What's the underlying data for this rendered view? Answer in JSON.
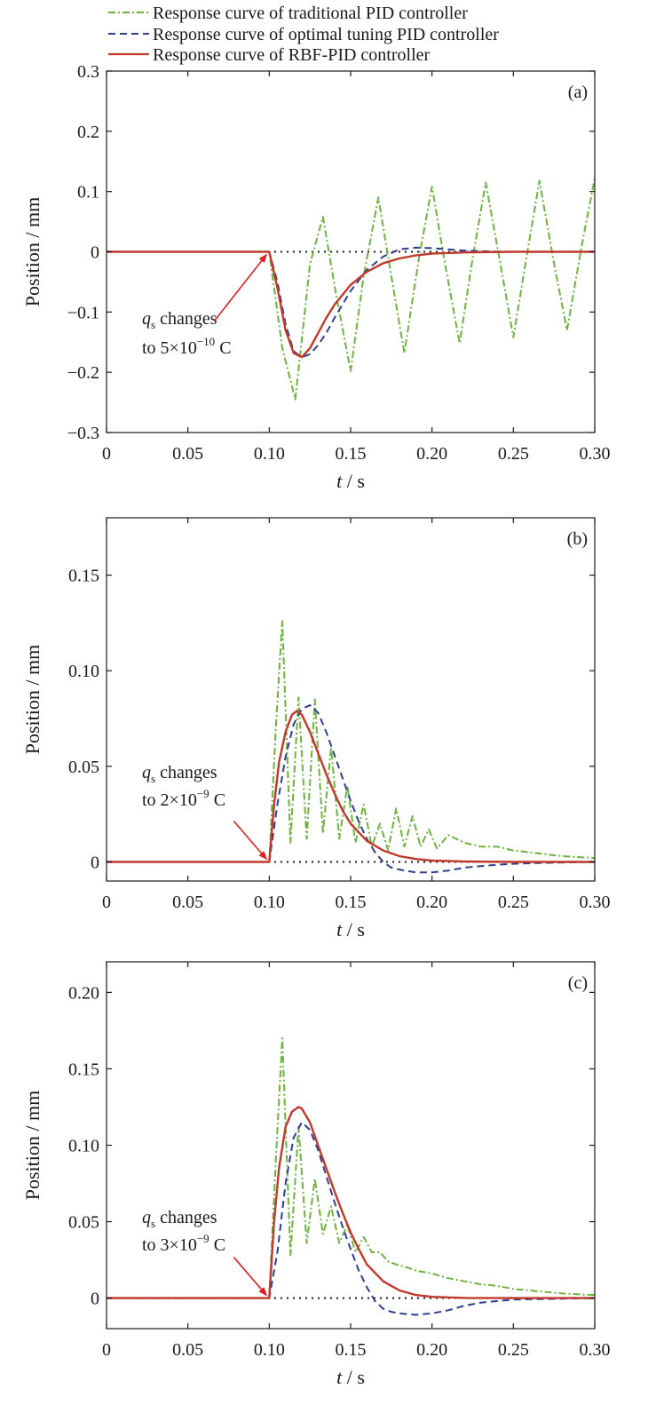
{
  "legend": {
    "position": "top",
    "entries": [
      {
        "label": "Response curve of traditional PID controller",
        "color": "#6cb33f",
        "dash": "dash-dot"
      },
      {
        "label": "Response curve of optimal tuning PID controller",
        "color": "#2e3f8f",
        "dash": "dashed"
      },
      {
        "label": "Response curve of RBF-PID controller",
        "color": "#c0392b",
        "dash": "solid"
      }
    ]
  },
  "colors": {
    "traditional": "#6cb33f",
    "optimal": "#2e3f8f",
    "rbf": "#c0392b",
    "arrow": "#e02020",
    "axis": "#1a1a1a"
  },
  "chart_data": [
    {
      "type": "line",
      "panel_label": "(a)",
      "xlabel": "t / s",
      "ylabel": "Position / mm",
      "xlim": [
        0,
        0.3
      ],
      "ylim": [
        -0.3,
        0.3
      ],
      "xticks": [
        0,
        0.05,
        0.1,
        0.15,
        0.2,
        0.25,
        0.3
      ],
      "xtick_labels": [
        "0",
        "0.05",
        "0.10",
        "0.15",
        "0.20",
        "0.25",
        "0.30"
      ],
      "yticks": [
        -0.3,
        -0.2,
        -0.1,
        0,
        0.1,
        0.2,
        0.3
      ],
      "ytick_labels": [
        "−0.3",
        "−0.2",
        "−0.1",
        "0",
        "0.1",
        "0.2",
        "0.3"
      ],
      "reference_line": 0,
      "annotation": {
        "line1": "changes",
        "q": "q",
        "sub": "s",
        "prefix": "to 5×10",
        "exp": "−10",
        "suffix": " C",
        "target": [
          0.1,
          0
        ]
      },
      "series": [
        {
          "name": "Response curve of traditional PID controller",
          "key": "traditional",
          "x": [
            0,
            0.1,
            0.108,
            0.116,
            0.125,
            0.133,
            0.141,
            0.15,
            0.158,
            0.167,
            0.175,
            0.183,
            0.192,
            0.2,
            0.208,
            0.217,
            0.225,
            0.233,
            0.242,
            0.25,
            0.258,
            0.266,
            0.275,
            0.283,
            0.292,
            0.3
          ],
          "y": [
            0,
            0,
            -0.16,
            -0.245,
            -0.02,
            0.058,
            -0.07,
            -0.198,
            -0.04,
            0.09,
            -0.04,
            -0.168,
            -0.01,
            0.108,
            -0.02,
            -0.152,
            -0.01,
            0.115,
            -0.02,
            -0.142,
            -0.01,
            0.118,
            -0.02,
            -0.13,
            0.01,
            0.122
          ]
        },
        {
          "name": "Response curve of optimal tuning PID controller",
          "key": "optimal",
          "x": [
            0,
            0.1,
            0.105,
            0.11,
            0.115,
            0.12,
            0.125,
            0.13,
            0.135,
            0.14,
            0.15,
            0.16,
            0.17,
            0.18,
            0.19,
            0.2,
            0.21,
            0.22,
            0.23,
            0.25,
            0.3
          ],
          "y": [
            0,
            0,
            -0.05,
            -0.12,
            -0.165,
            -0.175,
            -0.17,
            -0.155,
            -0.135,
            -0.11,
            -0.065,
            -0.03,
            -0.008,
            0.004,
            0.007,
            0.006,
            0.004,
            0.002,
            0.001,
            0,
            0
          ]
        },
        {
          "name": "Response curve of RBF-PID controller",
          "key": "rbf",
          "x": [
            0,
            0.1,
            0.105,
            0.11,
            0.115,
            0.12,
            0.125,
            0.13,
            0.135,
            0.14,
            0.15,
            0.16,
            0.17,
            0.18,
            0.19,
            0.2,
            0.22,
            0.25,
            0.3
          ],
          "y": [
            0,
            0,
            -0.06,
            -0.13,
            -0.168,
            -0.175,
            -0.16,
            -0.135,
            -0.11,
            -0.088,
            -0.055,
            -0.033,
            -0.019,
            -0.011,
            -0.006,
            -0.003,
            -0.001,
            0,
            0
          ]
        }
      ]
    },
    {
      "type": "line",
      "panel_label": "(b)",
      "xlabel": "t / s",
      "ylabel": "Position / mm",
      "xlim": [
        0,
        0.3
      ],
      "ylim": [
        -0.01,
        0.18
      ],
      "xticks": [
        0,
        0.05,
        0.1,
        0.15,
        0.2,
        0.25,
        0.3
      ],
      "xtick_labels": [
        "0",
        "0.05",
        "0.10",
        "0.15",
        "0.20",
        "0.25",
        "0.30"
      ],
      "yticks": [
        0,
        0.05,
        0.1,
        0.15
      ],
      "ytick_labels": [
        "0",
        "0.05",
        "0.10",
        "0.15"
      ],
      "reference_line": 0,
      "annotation": {
        "line1": "changes",
        "q": "q",
        "sub": "s",
        "prefix": "to 2×10",
        "exp": "−9",
        "suffix": " C",
        "target": [
          0.1,
          0
        ]
      },
      "series": [
        {
          "name": "Response curve of traditional PID controller",
          "key": "traditional",
          "x": [
            0,
            0.1,
            0.104,
            0.108,
            0.113,
            0.118,
            0.123,
            0.128,
            0.133,
            0.138,
            0.143,
            0.148,
            0.153,
            0.158,
            0.163,
            0.168,
            0.173,
            0.178,
            0.183,
            0.188,
            0.193,
            0.198,
            0.203,
            0.21,
            0.22,
            0.23,
            0.24,
            0.25,
            0.26,
            0.27,
            0.28,
            0.3
          ],
          "y": [
            0,
            0,
            0.07,
            0.126,
            0.01,
            0.086,
            0.012,
            0.085,
            0.015,
            0.06,
            0.012,
            0.04,
            0.01,
            0.03,
            0.008,
            0.02,
            0.006,
            0.028,
            0.008,
            0.024,
            0.008,
            0.017,
            0.007,
            0.014,
            0.01,
            0.008,
            0.008,
            0.006,
            0.005,
            0.004,
            0.003,
            0.002
          ]
        },
        {
          "name": "Response curve of optimal tuning PID controller",
          "key": "optimal",
          "x": [
            0,
            0.1,
            0.105,
            0.11,
            0.115,
            0.12,
            0.125,
            0.13,
            0.135,
            0.14,
            0.145,
            0.15,
            0.155,
            0.16,
            0.165,
            0.17,
            0.175,
            0.18,
            0.19,
            0.2,
            0.21,
            0.22,
            0.23,
            0.24,
            0.25,
            0.27,
            0.3
          ],
          "y": [
            0,
            0,
            0.03,
            0.055,
            0.072,
            0.08,
            0.082,
            0.078,
            0.068,
            0.056,
            0.044,
            0.032,
            0.021,
            0.012,
            0.005,
            0.0,
            -0.003,
            -0.004,
            -0.0055,
            -0.0055,
            -0.0045,
            -0.003,
            -0.0022,
            -0.0015,
            -0.001,
            -0.0005,
            0
          ]
        },
        {
          "name": "Response curve of RBF-PID controller",
          "key": "rbf",
          "x": [
            0,
            0.1,
            0.103,
            0.106,
            0.11,
            0.114,
            0.117,
            0.12,
            0.125,
            0.13,
            0.135,
            0.14,
            0.145,
            0.15,
            0.16,
            0.17,
            0.18,
            0.19,
            0.2,
            0.22,
            0.25,
            0.3
          ],
          "y": [
            0,
            0,
            0.03,
            0.052,
            0.068,
            0.077,
            0.079,
            0.077,
            0.068,
            0.057,
            0.046,
            0.036,
            0.027,
            0.02,
            0.011,
            0.006,
            0.003,
            0.0015,
            0.0007,
            0.0002,
            0,
            0
          ]
        }
      ]
    },
    {
      "type": "line",
      "panel_label": "(c)",
      "xlabel": "t / s",
      "ylabel": "Position / mm",
      "xlim": [
        0,
        0.3
      ],
      "ylim": [
        -0.02,
        0.22
      ],
      "xticks": [
        0,
        0.05,
        0.1,
        0.15,
        0.2,
        0.25,
        0.3
      ],
      "xtick_labels": [
        "0",
        "0.05",
        "0.10",
        "0.15",
        "0.20",
        "0.25",
        "0.30"
      ],
      "yticks": [
        0,
        0.05,
        0.1,
        0.15,
        0.2
      ],
      "ytick_labels": [
        "0",
        "0.05",
        "0.10",
        "0.15",
        "0.20"
      ],
      "reference_line": 0,
      "annotation": {
        "line1": "changes",
        "q": "q",
        "sub": "s",
        "prefix": "to 3×10",
        "exp": "−9",
        "suffix": " C",
        "target": [
          0.1,
          0
        ]
      },
      "series": [
        {
          "name": "Response curve of traditional PID controller",
          "key": "traditional",
          "x": [
            0,
            0.1,
            0.104,
            0.108,
            0.113,
            0.118,
            0.123,
            0.128,
            0.133,
            0.138,
            0.143,
            0.148,
            0.153,
            0.158,
            0.163,
            0.168,
            0.173,
            0.178,
            0.185,
            0.19,
            0.2,
            0.21,
            0.22,
            0.23,
            0.24,
            0.25,
            0.26,
            0.27,
            0.28,
            0.3
          ],
          "y": [
            0,
            0,
            0.09,
            0.17,
            0.028,
            0.112,
            0.036,
            0.078,
            0.042,
            0.06,
            0.036,
            0.048,
            0.03,
            0.04,
            0.03,
            0.03,
            0.024,
            0.022,
            0.02,
            0.018,
            0.016,
            0.013,
            0.011,
            0.009,
            0.008,
            0.006,
            0.005,
            0.004,
            0.003,
            0.002
          ]
        },
        {
          "name": "Response curve of optimal tuning PID controller",
          "key": "optimal",
          "x": [
            0,
            0.1,
            0.105,
            0.11,
            0.115,
            0.12,
            0.125,
            0.13,
            0.135,
            0.14,
            0.145,
            0.15,
            0.155,
            0.16,
            0.165,
            0.17,
            0.175,
            0.18,
            0.19,
            0.2,
            0.21,
            0.22,
            0.23,
            0.25,
            0.3
          ],
          "y": [
            0,
            0,
            0.03,
            0.075,
            0.105,
            0.115,
            0.11,
            0.097,
            0.08,
            0.063,
            0.047,
            0.032,
            0.018,
            0.007,
            -0.002,
            -0.007,
            -0.009,
            -0.01,
            -0.011,
            -0.01,
            -0.008,
            -0.005,
            -0.003,
            -0.001,
            0
          ]
        },
        {
          "name": "Response curve of RBF-PID controller",
          "key": "rbf",
          "x": [
            0,
            0.1,
            0.103,
            0.106,
            0.11,
            0.114,
            0.118,
            0.12,
            0.125,
            0.13,
            0.135,
            0.14,
            0.145,
            0.15,
            0.155,
            0.16,
            0.17,
            0.18,
            0.19,
            0.2,
            0.22,
            0.25,
            0.3
          ],
          "y": [
            0,
            0,
            0.05,
            0.085,
            0.112,
            0.122,
            0.125,
            0.124,
            0.115,
            0.1,
            0.085,
            0.07,
            0.056,
            0.043,
            0.032,
            0.022,
            0.011,
            0.005,
            0.002,
            0.0008,
            0.0001,
            0,
            0
          ]
        }
      ]
    }
  ]
}
